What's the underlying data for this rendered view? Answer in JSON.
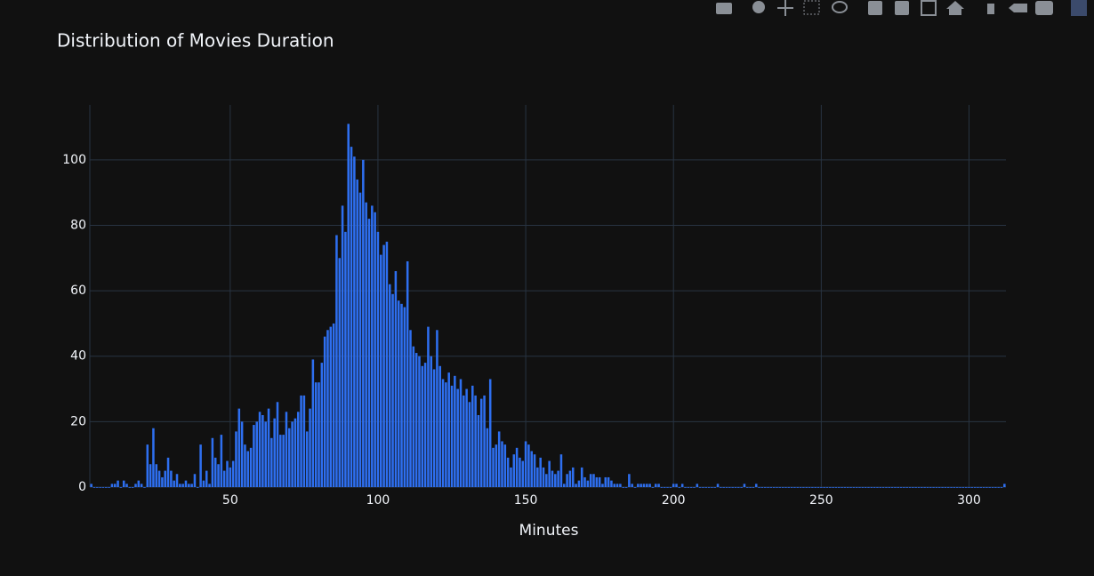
{
  "chart_data": {
    "type": "histogram",
    "title": "Distribution of Movies Duration",
    "x_label": "Minutes",
    "color": "#2e6ff0",
    "grid": true,
    "xlim": [
      2.5,
      312.5
    ],
    "ylim": [
      0,
      116.8
    ],
    "xticks": [
      50,
      100,
      150,
      200,
      250,
      300
    ],
    "yticks": [
      0,
      20,
      40,
      60,
      80,
      100
    ],
    "bins": [
      2.5,
      3.5,
      4.5,
      5.5,
      6.5,
      7.5,
      8.5,
      9.5,
      10.5,
      11.5,
      12.5,
      13.5,
      14.5,
      15.5,
      16.5,
      17.5,
      18.5,
      19.5,
      20.5,
      21.5,
      22.5,
      23.5,
      24.5,
      25.5,
      26.5,
      27.5,
      28.5,
      29.5,
      30.5,
      31.5,
      32.5,
      33.5,
      34.5,
      35.5,
      36.5,
      37.5,
      38.5,
      39.5,
      40.5,
      41.5,
      42.5,
      43.5,
      44.5,
      45.5,
      46.5,
      47.5,
      48.5,
      49.5,
      50.5,
      51.5,
      52.5,
      53.5,
      54.5,
      55.5,
      56.5,
      57.5,
      58.5,
      59.5,
      60.5,
      61.5,
      62.5,
      63.5,
      64.5,
      65.5,
      66.5,
      67.5,
      68.5,
      69.5,
      70.5,
      71.5,
      72.5,
      73.5,
      74.5,
      75.5,
      76.5,
      77.5,
      78.5,
      79.5,
      80.5,
      81.5,
      82.5,
      83.5,
      84.5,
      85.5,
      86.5,
      87.5,
      88.5,
      89.5,
      90.5,
      91.5,
      92.5,
      93.5,
      94.5,
      95.5,
      96.5,
      97.5,
      98.5,
      99.5,
      100.5,
      101.5,
      102.5,
      103.5,
      104.5,
      105.5,
      106.5,
      107.5,
      108.5,
      109.5,
      110.5,
      111.5,
      112.5,
      113.5,
      114.5,
      115.5,
      116.5,
      117.5,
      118.5,
      119.5,
      120.5,
      121.5,
      122.5,
      123.5,
      124.5,
      125.5,
      126.5,
      127.5,
      128.5,
      129.5,
      130.5,
      131.5,
      132.5,
      133.5,
      134.5,
      135.5,
      136.5,
      137.5,
      138.5,
      139.5,
      140.5,
      141.5,
      142.5,
      143.5,
      144.5,
      145.5,
      146.5,
      147.5,
      148.5,
      149.5,
      150.5,
      151.5,
      152.5,
      153.5,
      154.5,
      155.5,
      156.5,
      157.5,
      158.5,
      159.5,
      160.5,
      161.5,
      162.5,
      163.5,
      164.5,
      165.5,
      166.5,
      167.5,
      168.5,
      169.5,
      170.5,
      171.5,
      172.5,
      173.5,
      174.5,
      175.5,
      176.5,
      177.5,
      178.5,
      179.5,
      180.5,
      181.5,
      182.5,
      183.5,
      184.5,
      185.5,
      186.5,
      187.5,
      188.5,
      189.5,
      190.5,
      191.5,
      192.5,
      193.5,
      194.5,
      195.5,
      196.5,
      197.5,
      198.5,
      199.5,
      200.5,
      201.5,
      202.5,
      203.5,
      204.5,
      205.5,
      206.5,
      207.5,
      208.5,
      209.5,
      210.5,
      211.5,
      212.5,
      213.5,
      214.5,
      215.5,
      216.5,
      217.5,
      218.5,
      219.5,
      220.5,
      221.5,
      222.5,
      223.5,
      224.5,
      225.5,
      226.5,
      227.5,
      228.5,
      229.5,
      230.5,
      231.5,
      232.5,
      233.5,
      234.5,
      235.5,
      236.5,
      237.5,
      238.5,
      239.5,
      240.5,
      241.5,
      242.5,
      243.5,
      244.5,
      245.5,
      246.5,
      247.5,
      248.5,
      249.5,
      250.5,
      251.5,
      252.5,
      253.5,
      254.5,
      255.5,
      256.5,
      257.5,
      258.5,
      259.5,
      260.5,
      261.5,
      262.5,
      263.5,
      264.5,
      265.5,
      266.5,
      267.5,
      268.5,
      269.5,
      270.5,
      271.5,
      272.5,
      273.5,
      274.5,
      275.5,
      276.5,
      277.5,
      278.5,
      279.5,
      280.5,
      281.5,
      282.5,
      283.5,
      284.5,
      285.5,
      286.5,
      287.5,
      288.5,
      289.5,
      290.5,
      291.5,
      292.5,
      293.5,
      294.5,
      295.5,
      296.5,
      297.5,
      298.5,
      299.5,
      300.5,
      301.5,
      302.5,
      303.5,
      304.5,
      305.5,
      306.5,
      307.5,
      308.5,
      309.5,
      310.5,
      311.5,
      312.5
    ],
    "values": [
      1,
      0,
      0,
      0,
      0,
      0,
      0,
      1,
      1,
      2,
      0,
      2,
      1,
      0,
      0,
      1,
      2,
      1,
      0,
      13,
      7,
      18,
      7,
      5,
      3,
      5,
      9,
      5,
      2,
      4,
      1,
      1,
      2,
      1,
      1,
      4,
      0,
      13,
      2,
      5,
      1,
      15,
      9,
      7,
      16,
      5,
      8,
      6,
      8,
      17,
      24,
      20,
      13,
      11,
      12,
      19,
      20,
      23,
      22,
      20,
      24,
      15,
      21,
      26,
      16,
      16,
      23,
      18,
      20,
      21,
      23,
      28,
      28,
      17,
      24,
      39,
      32,
      32,
      38,
      46,
      48,
      49,
      50,
      77,
      70,
      86,
      78,
      111,
      104,
      101,
      94,
      90,
      100,
      87,
      82,
      86,
      84,
      78,
      71,
      74,
      75,
      62,
      59,
      66,
      57,
      56,
      55,
      69,
      48,
      43,
      41,
      40,
      37,
      38,
      49,
      40,
      36,
      48,
      37,
      33,
      32,
      35,
      31,
      34,
      30,
      33,
      28,
      30,
      26,
      31,
      28,
      22,
      27,
      28,
      18,
      33,
      12,
      13,
      17,
      14,
      13,
      9,
      6,
      10,
      12,
      9,
      8,
      14,
      13,
      11,
      10,
      6,
      9,
      6,
      4,
      8,
      5,
      4,
      5,
      10,
      1,
      4,
      5,
      6,
      1,
      2,
      6,
      3,
      2,
      4,
      4,
      3,
      3,
      1,
      3,
      3,
      2,
      1,
      1,
      1,
      0,
      0,
      4,
      1,
      0,
      1,
      1,
      1,
      1,
      1,
      0,
      1,
      1,
      0,
      0,
      0,
      0,
      1,
      1,
      0,
      1,
      0,
      0,
      0,
      0,
      1,
      0,
      0,
      0,
      0,
      0,
      0,
      1,
      0,
      0,
      0,
      0,
      0,
      0,
      0,
      0,
      1,
      0,
      0,
      0,
      1,
      0,
      0,
      0,
      0,
      0,
      0,
      0,
      0,
      0,
      0,
      0,
      0,
      0,
      0,
      0,
      0,
      0,
      0,
      0,
      0,
      0,
      0,
      0,
      0,
      0,
      0,
      0,
      0,
      0,
      0,
      0,
      0,
      0,
      0,
      0,
      0,
      0,
      0,
      0,
      0,
      0,
      0,
      0,
      0,
      0,
      0,
      0,
      0,
      0,
      0,
      0,
      0,
      0,
      0,
      0,
      0,
      0,
      0,
      0,
      0,
      0,
      0,
      0,
      0,
      0,
      0,
      0,
      0,
      0,
      0,
      0,
      0,
      0,
      0,
      0,
      0,
      0,
      0,
      0,
      0,
      0,
      0,
      0,
      1
    ]
  }
}
